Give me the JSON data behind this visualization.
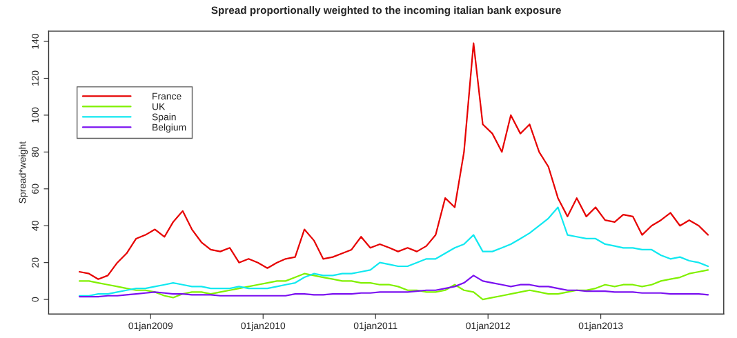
{
  "chart_data": {
    "type": "line",
    "title": "Spread proportionally weighted to the incoming italian bank exposure",
    "ylabel": "Spread*weight",
    "x": [
      "2008-05-15",
      "2008-06-15",
      "2008-07-15",
      "2008-08-15",
      "2008-09-15",
      "2008-10-15",
      "2008-11-15",
      "2008-12-15",
      "2009-01-15",
      "2009-02-15",
      "2009-03-15",
      "2009-04-15",
      "2009-05-15",
      "2009-06-15",
      "2009-07-15",
      "2009-08-15",
      "2009-09-15",
      "2009-10-15",
      "2009-11-15",
      "2009-12-15",
      "2010-01-15",
      "2010-02-15",
      "2010-03-15",
      "2010-04-15",
      "2010-05-15",
      "2010-06-15",
      "2010-07-15",
      "2010-08-15",
      "2010-09-15",
      "2010-10-15",
      "2010-11-15",
      "2010-12-15",
      "2011-01-15",
      "2011-02-15",
      "2011-03-15",
      "2011-04-15",
      "2011-05-15",
      "2011-06-15",
      "2011-07-15",
      "2011-08-15",
      "2011-09-15",
      "2011-10-15",
      "2011-11-15",
      "2011-12-15",
      "2012-01-15",
      "2012-02-15",
      "2012-03-15",
      "2012-04-15",
      "2012-05-15",
      "2012-06-15",
      "2012-07-15",
      "2012-08-15",
      "2012-09-15",
      "2012-10-15",
      "2012-11-15",
      "2012-12-15",
      "2013-01-15",
      "2013-02-15",
      "2013-03-15",
      "2013-04-15",
      "2013-05-15",
      "2013-06-15",
      "2013-07-15",
      "2013-08-15",
      "2013-09-15",
      "2013-10-15",
      "2013-11-15",
      "2013-12-15"
    ],
    "series": [
      {
        "name": "France",
        "color": "#e60000",
        "values": [
          15,
          14,
          11,
          13,
          20,
          25,
          33,
          35,
          38,
          34,
          42,
          48,
          38,
          31,
          27,
          26,
          28,
          20,
          22,
          20,
          17,
          20,
          22,
          23,
          38,
          32,
          22,
          23,
          25,
          27,
          34,
          28,
          30,
          28,
          26,
          28,
          26,
          29,
          35,
          55,
          50,
          80,
          139,
          95,
          90,
          80,
          100,
          90,
          95,
          80,
          72,
          55,
          45,
          55,
          45,
          50,
          43,
          42,
          46,
          45,
          35,
          40,
          43,
          47,
          40,
          43,
          40,
          35
        ]
      },
      {
        "name": "UK",
        "color": "#80f000",
        "values": [
          10,
          10,
          9,
          8,
          7,
          6,
          5,
          5,
          4,
          2,
          1,
          3,
          4,
          4,
          3,
          4,
          5,
          6,
          7,
          8,
          9,
          10,
          10,
          12,
          14,
          13,
          12,
          11,
          10,
          10,
          9,
          9,
          8,
          8,
          7,
          5,
          5,
          4,
          4,
          5,
          8,
          5,
          4,
          0,
          1,
          2,
          3,
          4,
          5,
          4,
          3,
          3,
          4,
          5,
          5,
          6,
          8,
          7,
          8,
          8,
          7,
          8,
          10,
          11,
          12,
          14,
          15,
          16
        ]
      },
      {
        "name": "Spain",
        "color": "#10e8f0",
        "values": [
          2,
          2,
          3,
          3,
          4,
          5,
          6,
          6,
          7,
          8,
          9,
          8,
          7,
          7,
          6,
          6,
          6,
          7,
          6,
          6,
          6,
          7,
          8,
          9,
          12,
          14,
          13,
          13,
          14,
          14,
          15,
          16,
          20,
          19,
          18,
          18,
          20,
          22,
          22,
          25,
          28,
          30,
          35,
          26,
          26,
          28,
          30,
          33,
          36,
          40,
          44,
          50,
          35,
          34,
          33,
          33,
          30,
          29,
          28,
          28,
          27,
          27,
          24,
          22,
          23,
          21,
          20,
          18
        ]
      },
      {
        "name": "Belgium",
        "color": "#7a10f0",
        "values": [
          1.5,
          1.5,
          1.5,
          2,
          2,
          2.5,
          3,
          3.5,
          4,
          3.5,
          3,
          3,
          2.5,
          2.5,
          2.5,
          2,
          2,
          2,
          2,
          2,
          2,
          2,
          2,
          3,
          3,
          2.5,
          2.5,
          3,
          3,
          3,
          3.5,
          3.5,
          4,
          4,
          4,
          4,
          4.5,
          5,
          5,
          6,
          7,
          9,
          13,
          10,
          9,
          8,
          7,
          8,
          8,
          7,
          7,
          6,
          5,
          5,
          4.5,
          4.5,
          4.5,
          4,
          4,
          4,
          3.5,
          3.5,
          3.5,
          3,
          3,
          3,
          3,
          2.5
        ]
      }
    ],
    "xlim": [
      "2008-02-05",
      "2014-02-04"
    ],
    "xticks": [
      {
        "value": "2009-01-01",
        "label": "01jan2009"
      },
      {
        "value": "2010-01-01",
        "label": "01jan2010"
      },
      {
        "value": "2011-01-01",
        "label": "01jan2011"
      },
      {
        "value": "2012-01-01",
        "label": "01jan2012"
      },
      {
        "value": "2013-01-01",
        "label": "01jan2013"
      }
    ],
    "ylim": [
      -7.9,
      145.6
    ],
    "yticks": [
      0,
      20,
      40,
      60,
      80,
      100,
      120,
      140
    ],
    "legend": "top left",
    "grid": false,
    "line_style": "solid",
    "marker": "none"
  }
}
